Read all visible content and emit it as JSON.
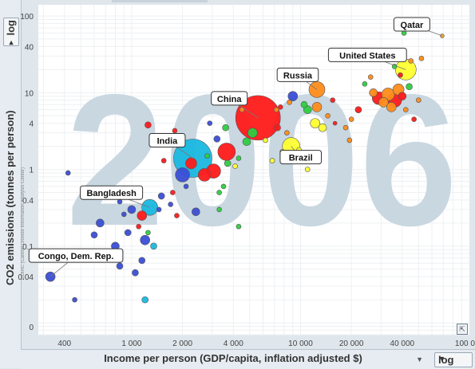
{
  "controls": {
    "y_scale": "log",
    "x_scale": "log",
    "dropdown_glyph": "▼",
    "resize_glyph": "⇱"
  },
  "chart_data": {
    "type": "scatter",
    "title": "",
    "year": "2006",
    "xlabel": "Income per person (GDP/capita, inflation adjusted $)",
    "ylabel": "CO2 emissions (tonnes per person)",
    "source": "CDIAC (Carbon Dioxide Information Analysis Center)",
    "x_scale": "log",
    "y_scale": "log",
    "xlim": [
      280,
      100000
    ],
    "ylim": [
      0.007,
      140
    ],
    "x_ticks": [
      {
        "value": 400,
        "label": "400"
      },
      {
        "value": 1000,
        "label": "1 000"
      },
      {
        "value": 2000,
        "label": "2 000"
      },
      {
        "value": 4000,
        "label": "4 000"
      },
      {
        "value": 10000,
        "label": "10 000"
      },
      {
        "value": 20000,
        "label": "20 000"
      },
      {
        "value": 40000,
        "label": "40 000"
      },
      {
        "value": 100000,
        "label": "100 000"
      }
    ],
    "y_ticks": [
      {
        "value": 0.04,
        "label": "0.04"
      },
      {
        "value": 0.1,
        "label": "0.1"
      },
      {
        "value": 0.4,
        "label": "0.4"
      },
      {
        "value": 1,
        "label": "1"
      },
      {
        "value": 4,
        "label": "4"
      },
      {
        "value": 10,
        "label": "10"
      },
      {
        "value": 40,
        "label": "40"
      },
      {
        "value": 100,
        "label": "100"
      }
    ],
    "y_zero_label": "0",
    "labeled_countries": [
      {
        "name": "Qatar",
        "x": 69000,
        "y": 55,
        "r": 2.5,
        "color": "#f0a030"
      },
      {
        "name": "United States",
        "x": 42000,
        "y": 20,
        "r": 13,
        "color": "#ffff30"
      },
      {
        "name": "Russia",
        "x": 12500,
        "y": 11,
        "r": 10,
        "color": "#ff8c1a"
      },
      {
        "name": "China",
        "x": 5600,
        "y": 4.7,
        "r": 28,
        "color": "#ff1a1a"
      },
      {
        "name": "India",
        "x": 2300,
        "y": 1.4,
        "r": 24,
        "color": "#1ab8e0"
      },
      {
        "name": "Brazil",
        "x": 8800,
        "y": 2.0,
        "r": 11,
        "color": "#ffff30"
      },
      {
        "name": "Bangladesh",
        "x": 1280,
        "y": 0.32,
        "r": 10,
        "color": "#1ab8e0"
      },
      {
        "name": "Congo, Dem. Rep.",
        "x": 330,
        "y": 0.04,
        "r": 6,
        "color": "#3a4ed6"
      }
    ],
    "other_countries": [
      {
        "x": 420,
        "y": 0.9,
        "r": 3,
        "color": "#3a4ed6"
      },
      {
        "x": 600,
        "y": 0.14,
        "r": 4,
        "color": "#3a4ed6"
      },
      {
        "x": 800,
        "y": 0.1,
        "r": 5,
        "color": "#3a4ed6"
      },
      {
        "x": 700,
        "y": 0.07,
        "r": 4,
        "color": "#3a4ed6"
      },
      {
        "x": 850,
        "y": 0.055,
        "r": 4,
        "color": "#3a4ed6"
      },
      {
        "x": 1150,
        "y": 0.065,
        "r": 4,
        "color": "#3a4ed6"
      },
      {
        "x": 1050,
        "y": 0.045,
        "r": 4,
        "color": "#3a4ed6"
      },
      {
        "x": 950,
        "y": 0.15,
        "r": 4,
        "color": "#3a4ed6"
      },
      {
        "x": 1200,
        "y": 0.12,
        "r": 6,
        "color": "#3a4ed6"
      },
      {
        "x": 1350,
        "y": 0.1,
        "r": 4,
        "color": "#1ab8e0"
      },
      {
        "x": 650,
        "y": 0.2,
        "r": 5,
        "color": "#3a4ed6"
      },
      {
        "x": 1000,
        "y": 0.3,
        "r": 5,
        "color": "#3a4ed6"
      },
      {
        "x": 1500,
        "y": 0.45,
        "r": 4,
        "color": "#3a4ed6"
      },
      {
        "x": 1150,
        "y": 0.25,
        "r": 6,
        "color": "#ff1a1a"
      },
      {
        "x": 900,
        "y": 0.26,
        "r": 3,
        "color": "#3a4ed6"
      },
      {
        "x": 1700,
        "y": 0.35,
        "r": 3,
        "color": "#3a4ed6"
      },
      {
        "x": 1450,
        "y": 0.3,
        "r": 3,
        "color": "#3a4ed6"
      },
      {
        "x": 1850,
        "y": 0.25,
        "r": 3,
        "color": "#ff1a1a"
      },
      {
        "x": 2400,
        "y": 0.28,
        "r": 5,
        "color": "#3a4ed6"
      },
      {
        "x": 3300,
        "y": 0.3,
        "r": 3,
        "color": "#2ecc40"
      },
      {
        "x": 4300,
        "y": 0.18,
        "r": 3,
        "color": "#2ecc40"
      },
      {
        "x": 2100,
        "y": 0.6,
        "r": 3,
        "color": "#3a4ed6"
      },
      {
        "x": 2000,
        "y": 0.85,
        "r": 9,
        "color": "#3a4ed6"
      },
      {
        "x": 2250,
        "y": 1.2,
        "r": 7,
        "color": "#ff1a1a"
      },
      {
        "x": 2700,
        "y": 0.85,
        "r": 8,
        "color": "#ff1a1a"
      },
      {
        "x": 3050,
        "y": 0.95,
        "r": 9,
        "color": "#ff1a1a"
      },
      {
        "x": 3650,
        "y": 1.7,
        "r": 11,
        "color": "#ff1a1a"
      },
      {
        "x": 3700,
        "y": 1.2,
        "r": 4,
        "color": "#2ecc40"
      },
      {
        "x": 3500,
        "y": 0.6,
        "r": 3,
        "color": "#2ecc40"
      },
      {
        "x": 3300,
        "y": 0.5,
        "r": 3,
        "color": "#2ecc40"
      },
      {
        "x": 4100,
        "y": 1.1,
        "r": 3,
        "color": "#ffff30"
      },
      {
        "x": 3200,
        "y": 2.5,
        "r": 4,
        "color": "#3a4ed6"
      },
      {
        "x": 4300,
        "y": 1.4,
        "r": 3,
        "color": "#2ecc40"
      },
      {
        "x": 1800,
        "y": 3.2,
        "r": 3,
        "color": "#ff1a1a"
      },
      {
        "x": 1250,
        "y": 3.8,
        "r": 4,
        "color": "#ff1a1a"
      },
      {
        "x": 2900,
        "y": 4.0,
        "r": 3,
        "color": "#3a4ed6"
      },
      {
        "x": 3600,
        "y": 3.5,
        "r": 4,
        "color": "#2ecc40"
      },
      {
        "x": 4800,
        "y": 2.3,
        "r": 5,
        "color": "#2ecc40"
      },
      {
        "x": 5200,
        "y": 3.0,
        "r": 6,
        "color": "#2ecc40"
      },
      {
        "x": 7300,
        "y": 3.5,
        "r": 4,
        "color": "#ff1a1a"
      },
      {
        "x": 8300,
        "y": 3.0,
        "r": 3,
        "color": "#ff8c1a"
      },
      {
        "x": 6200,
        "y": 2.4,
        "r": 3,
        "color": "#ffff30"
      },
      {
        "x": 6800,
        "y": 1.3,
        "r": 3,
        "color": "#ffff30"
      },
      {
        "x": 7800,
        "y": 1.7,
        "r": 3,
        "color": "#ffff30"
      },
      {
        "x": 9800,
        "y": 1.8,
        "r": 3,
        "color": "#ffff30"
      },
      {
        "x": 7200,
        "y": 6.0,
        "r": 3,
        "color": "#ff8c1a"
      },
      {
        "x": 7600,
        "y": 6.5,
        "r": 3,
        "color": "#ff1a1a"
      },
      {
        "x": 8600,
        "y": 7.5,
        "r": 3,
        "color": "#ff8c1a"
      },
      {
        "x": 9000,
        "y": 9.0,
        "r": 6,
        "color": "#3a4ed6"
      },
      {
        "x": 10500,
        "y": 7.0,
        "r": 4,
        "color": "#2ecc40"
      },
      {
        "x": 11000,
        "y": 6.0,
        "r": 5,
        "color": "#2ecc40"
      },
      {
        "x": 12200,
        "y": 4.0,
        "r": 6,
        "color": "#ffff30"
      },
      {
        "x": 13500,
        "y": 3.5,
        "r": 5,
        "color": "#ffff30"
      },
      {
        "x": 12500,
        "y": 6.5,
        "r": 6,
        "color": "#ff8c1a"
      },
      {
        "x": 14500,
        "y": 5.0,
        "r": 3,
        "color": "#ff8c1a"
      },
      {
        "x": 15500,
        "y": 8.0,
        "r": 3,
        "color": "#ff1a1a"
      },
      {
        "x": 16000,
        "y": 4.0,
        "r": 2.5,
        "color": "#ff1a1a"
      },
      {
        "x": 11000,
        "y": 1.0,
        "r": 3,
        "color": "#ffff30"
      },
      {
        "x": 18500,
        "y": 3.5,
        "r": 3,
        "color": "#ff8c1a"
      },
      {
        "x": 19500,
        "y": 2.4,
        "r": 3,
        "color": "#ff8c1a"
      },
      {
        "x": 20000,
        "y": 4.5,
        "r": 3,
        "color": "#ff8c1a"
      },
      {
        "x": 24000,
        "y": 13.0,
        "r": 3,
        "color": "#2ecc40"
      },
      {
        "x": 26000,
        "y": 16.0,
        "r": 3,
        "color": "#ff8c1a"
      },
      {
        "x": 27000,
        "y": 10.0,
        "r": 5,
        "color": "#ff8c1a"
      },
      {
        "x": 29000,
        "y": 8.5,
        "r": 8,
        "color": "#ff1a1a"
      },
      {
        "x": 31000,
        "y": 7.5,
        "r": 6,
        "color": "#ff8c1a"
      },
      {
        "x": 33000,
        "y": 9.5,
        "r": 8,
        "color": "#ff8c1a"
      },
      {
        "x": 34500,
        "y": 6.5,
        "r": 6,
        "color": "#ff8c1a"
      },
      {
        "x": 36000,
        "y": 8.0,
        "r": 9,
        "color": "#ff1a1a"
      },
      {
        "x": 38000,
        "y": 11.0,
        "r": 7,
        "color": "#ff8c1a"
      },
      {
        "x": 40000,
        "y": 9.0,
        "r": 5,
        "color": "#ff1a1a"
      },
      {
        "x": 42000,
        "y": 6.0,
        "r": 3,
        "color": "#ff8c1a"
      },
      {
        "x": 44000,
        "y": 12.0,
        "r": 4,
        "color": "#2ecc40"
      },
      {
        "x": 47000,
        "y": 4.5,
        "r": 3,
        "color": "#ff1a1a"
      },
      {
        "x": 50000,
        "y": 8.0,
        "r": 3,
        "color": "#ff8c1a"
      },
      {
        "x": 45000,
        "y": 26.0,
        "r": 3,
        "color": "#ff8c1a"
      },
      {
        "x": 39000,
        "y": 17.0,
        "r": 3,
        "color": "#ff1a1a"
      },
      {
        "x": 41000,
        "y": 60.0,
        "r": 3,
        "color": "#2ecc40"
      },
      {
        "x": 52000,
        "y": 28.0,
        "r": 3,
        "color": "#ff8c1a"
      },
      {
        "x": 36000,
        "y": 22.0,
        "r": 3,
        "color": "#2ecc40"
      },
      {
        "x": 22000,
        "y": 6.0,
        "r": 4,
        "color": "#ff1a1a"
      },
      {
        "x": 1550,
        "y": 1.3,
        "r": 3,
        "color": "#ff1a1a"
      },
      {
        "x": 1250,
        "y": 0.15,
        "r": 3,
        "color": "#2ecc40"
      },
      {
        "x": 1100,
        "y": 0.18,
        "r": 3,
        "color": "#ff1a1a"
      },
      {
        "x": 1200,
        "y": 0.02,
        "r": 4,
        "color": "#1ab8e0"
      },
      {
        "x": 460,
        "y": 0.02,
        "r": 3,
        "color": "#3a4ed6"
      },
      {
        "x": 850,
        "y": 0.38,
        "r": 3,
        "color": "#3a4ed6"
      },
      {
        "x": 1750,
        "y": 0.5,
        "r": 3,
        "color": "#ff1a1a"
      },
      {
        "x": 2800,
        "y": 1.5,
        "r": 3,
        "color": "#2ecc40"
      },
      {
        "x": 4500,
        "y": 6.0,
        "r": 3,
        "color": "#ff8c1a"
      }
    ]
  }
}
